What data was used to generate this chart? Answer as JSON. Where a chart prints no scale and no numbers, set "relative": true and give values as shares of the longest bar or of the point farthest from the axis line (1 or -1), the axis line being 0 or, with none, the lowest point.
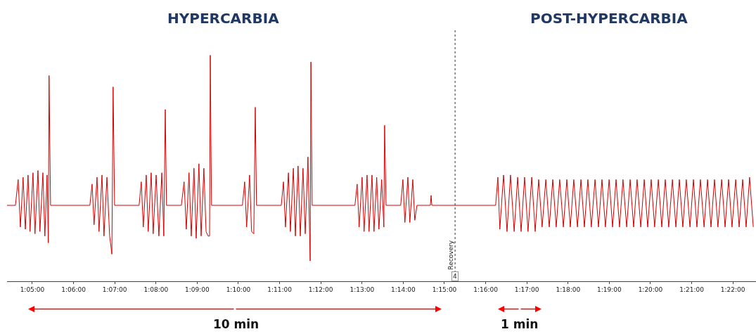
{
  "chart_data": {
    "type": "line",
    "relative": true,
    "annotations": [
      "HYPERCARBIA",
      "POST-HYPERCARBIA",
      "10 min",
      "1 min",
      "4"
    ],
    "x": [
      1.0731,
      1.0765,
      1.0776,
      1.0785,
      1.0796,
      1.0805,
      1.0816,
      1.0824,
      1.0836,
      1.0844,
      1.0856,
      1.0864,
      1.0876,
      1.0884,
      1.0893,
      1.0898,
      1.0901,
      1.0907,
      1.1066,
      1.1075,
      1.1083,
      1.1095,
      1.1103,
      1.1115,
      1.1123,
      1.1135,
      1.1146,
      1.1155,
      1.116,
      1.1166,
      1.1265,
      1.1274,
      1.1282,
      1.1294,
      1.1302,
      1.1314,
      1.1322,
      1.1334,
      1.1345,
      1.1357,
      1.1365,
      1.1371,
      1.1376,
      1.1436,
      1.1447,
      1.1456,
      1.1467,
      1.1476,
      1.1487,
      1.1496,
      1.1507,
      1.1516,
      1.1527,
      1.1536,
      1.1544,
      1.155,
      1.1553,
      1.1558,
      1.1683,
      1.1692,
      1.17,
      1.1712,
      1.172,
      1.1729,
      1.1735,
      1.174,
      1.184,
      1.1849,
      1.1857,
      1.1869,
      1.1877,
      1.1889,
      1.1897,
      1.1908,
      1.1917,
      1.1928,
      1.1937,
      1.1948,
      1.1957,
      1.196,
      1.1965,
      1.2138,
      1.2147,
      1.2155,
      1.2167,
      1.2175,
      1.2187,
      1.2195,
      1.2207,
      1.2215,
      1.2226,
      1.2235,
      1.2246,
      1.2255,
      1.2258,
      1.2264,
      1.2323,
      1.2332,
      1.234,
      1.2352,
      1.236,
      1.2372,
      1.238,
      1.2389,
      1.2443,
      1.2446,
      1.2449,
      1.2707,
      1.2716,
      1.2724,
      1.2739,
      1.2753,
      1.2767,
      1.2782,
      1.2796,
      1.281,
      1.2824,
      1.2838,
      1.2853,
      1.2867,
      1.2881,
      1.2895,
      1.291,
      1.2924,
      1.2938,
      1.2952,
      1.2966,
      1.2981,
      1.2995,
      1.3009,
      1.3023,
      1.3038,
      1.3052,
      1.3066,
      1.308,
      1.3094,
      1.3109,
      1.3123,
      1.3137,
      1.3151,
      1.3166,
      1.318,
      1.3194,
      1.3208,
      1.3222,
      1.3237,
      1.3251,
      1.3265,
      1.3279,
      1.3294,
      1.3308,
      1.3322,
      1.3336,
      1.335,
      1.3365,
      1.3379,
      1.3393,
      1.3407,
      1.3422,
      1.3436,
      1.345,
      1.3464,
      1.3478,
      1.3493,
      1.3507,
      1.3521,
      1.3535,
      1.355,
      1.3564,
      1.3578,
      1.3592,
      1.3606,
      1.3621,
      1.3635,
      1.3649,
      1.3663,
      1.3678,
      1.3692,
      1.3706,
      1.372,
      1.3734,
      1.3749
    ],
    "series": [
      {
        "color": "#d40000",
        "values": [
          0.336,
          0.336,
          0.45,
          0.24,
          0.46,
          0.23,
          0.47,
          0.22,
          0.48,
          0.21,
          0.49,
          0.22,
          0.48,
          0.2,
          0.47,
          0.17,
          0.91,
          0.336,
          0.336,
          0.43,
          0.25,
          0.46,
          0.22,
          0.47,
          0.2,
          0.46,
          0.2,
          0.12,
          0.86,
          0.336,
          0.336,
          0.44,
          0.24,
          0.47,
          0.22,
          0.48,
          0.21,
          0.47,
          0.2,
          0.48,
          0.2,
          0.76,
          0.336,
          0.336,
          0.44,
          0.23,
          0.48,
          0.2,
          0.5,
          0.19,
          0.52,
          0.2,
          0.5,
          0.22,
          0.2,
          0.2,
          1.0,
          0.336,
          0.336,
          0.44,
          0.24,
          0.47,
          0.22,
          0.21,
          0.77,
          0.336,
          0.336,
          0.44,
          0.24,
          0.48,
          0.22,
          0.5,
          0.2,
          0.51,
          0.2,
          0.5,
          0.21,
          0.55,
          0.09,
          0.97,
          0.336,
          0.336,
          0.43,
          0.24,
          0.46,
          0.22,
          0.47,
          0.22,
          0.47,
          0.22,
          0.46,
          0.23,
          0.45,
          0.24,
          0.69,
          0.336,
          0.336,
          0.45,
          0.26,
          0.46,
          0.26,
          0.45,
          0.27,
          0.336,
          0.336,
          0.38,
          0.336,
          0.336,
          0.46,
          0.23,
          0.47,
          0.22,
          0.47,
          0.22,
          0.46,
          0.22,
          0.46,
          0.22,
          0.46,
          0.22,
          0.45,
          0.24,
          0.45,
          0.24,
          0.45,
          0.24,
          0.45,
          0.24,
          0.45,
          0.24,
          0.45,
          0.24,
          0.45,
          0.24,
          0.45,
          0.24,
          0.45,
          0.24,
          0.45,
          0.24,
          0.45,
          0.24,
          0.45,
          0.24,
          0.45,
          0.24,
          0.45,
          0.24,
          0.45,
          0.24,
          0.45,
          0.24,
          0.45,
          0.24,
          0.45,
          0.24,
          0.45,
          0.24,
          0.45,
          0.24,
          0.45,
          0.24,
          0.45,
          0.24,
          0.45,
          0.24,
          0.45,
          0.24,
          0.45,
          0.24,
          0.45,
          0.24,
          0.45,
          0.24,
          0.45,
          0.24,
          0.45,
          0.24,
          0.45,
          0.24,
          0.46,
          0.24
        ]
      }
    ],
    "xlim": [
      1.0731,
      1.376
    ],
    "xticks": [
      {
        "value": 1.08333,
        "label": "1:05:00"
      },
      {
        "value": 1.1,
        "label": "1:06:00"
      },
      {
        "value": 1.11667,
        "label": "1:07:00"
      },
      {
        "value": 1.13333,
        "label": "1:08:00"
      },
      {
        "value": 1.15,
        "label": "1:09:00"
      },
      {
        "value": 1.16667,
        "label": "1:10:00"
      },
      {
        "value": 1.18333,
        "label": "1:11:00"
      },
      {
        "value": 1.2,
        "label": "1:12:00"
      },
      {
        "value": 1.21667,
        "label": "1:13:00"
      },
      {
        "value": 1.23333,
        "label": "1:14:00"
      },
      {
        "value": 1.25,
        "label": "1:15:00"
      },
      {
        "value": 1.26667,
        "label": "1:16:00"
      },
      {
        "value": 1.28333,
        "label": "1:17:00"
      },
      {
        "value": 1.3,
        "label": "1:18:00"
      },
      {
        "value": 1.31667,
        "label": "1:19:00"
      },
      {
        "value": 1.33333,
        "label": "1:20:00"
      },
      {
        "value": 1.35,
        "label": "1:21:00"
      },
      {
        "value": 1.36667,
        "label": "1:22:00"
      }
    ],
    "ref_lines": [
      {
        "axis": "x",
        "value": 1.2543,
        "label": "Recovery",
        "color": "#333333",
        "line_style": "dotted"
      }
    ],
    "tick_labels": "x",
    "grid": false,
    "marker": "none",
    "line_style": "solid"
  }
}
